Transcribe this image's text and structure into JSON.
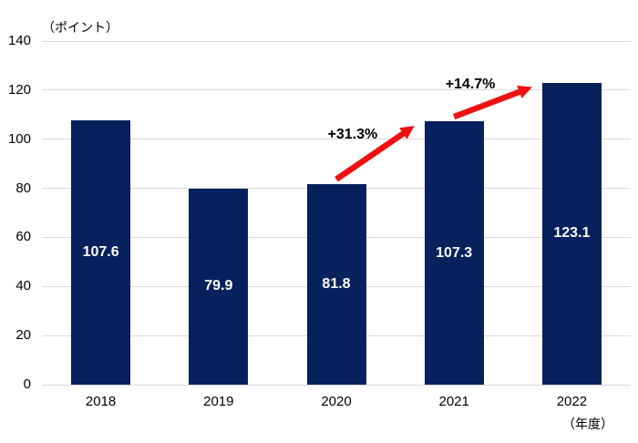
{
  "chart_data": {
    "type": "bar",
    "title": "",
    "y_unit_label": "（ポイント）",
    "x_unit_label": "（年度）",
    "categories": [
      "2018",
      "2019",
      "2020",
      "2021",
      "2022"
    ],
    "values": [
      107.6,
      79.9,
      81.8,
      107.3,
      123.1
    ],
    "value_labels": [
      "107.6",
      "79.9",
      "81.8",
      "107.3",
      "123.1"
    ],
    "ylim": [
      0,
      140
    ],
    "yticks": [
      0,
      20,
      40,
      60,
      80,
      100,
      120,
      140
    ],
    "grid": true,
    "legend": "none",
    "annotations": [
      {
        "label": "+31.3%",
        "from_index": 2,
        "to_index": 3
      },
      {
        "label": "+14.7%",
        "from_index": 3,
        "to_index": 4
      }
    ],
    "colors": {
      "bar": "#07215c",
      "arrow": "#ee1111",
      "gridline": "#d9d9d9",
      "value_label": "#ffffff",
      "text": "#000000",
      "background": "#ffffff"
    }
  }
}
